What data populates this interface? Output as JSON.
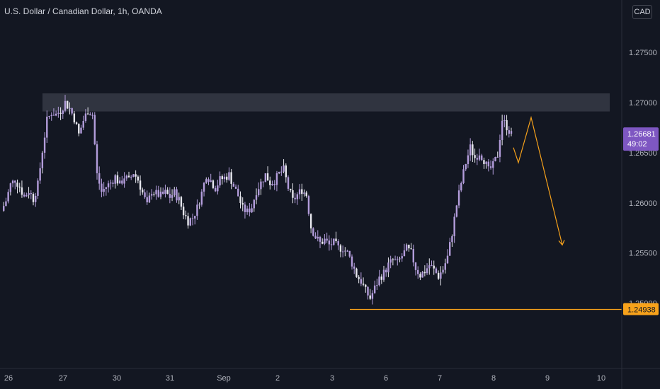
{
  "header": {
    "title": "U.S. Dollar / Canadian Dollar, 1h, OANDA"
  },
  "toolbar": {
    "currency_label": "CAD"
  },
  "chart_data": {
    "type": "candlestick",
    "colors": {
      "background": "#131722",
      "candle": "#b39ddb",
      "candle_light": "#e8e8ef",
      "resistance_zone": "#363a45",
      "support_line": "#f7a21b",
      "projection": "#f7a21b",
      "price_tag": "#7e57c2",
      "support_tag": "#f7a21b",
      "axis_text": "#b2b5be"
    },
    "yaxis": {
      "ticks": [
        "1.27500",
        "1.27000",
        "1.26500",
        "1.26000",
        "1.25500",
        "1.25000"
      ],
      "tick_values": [
        1.275,
        1.27,
        1.265,
        1.26,
        1.255,
        1.25
      ],
      "range": [
        1.2435,
        1.2802
      ]
    },
    "xaxis": {
      "ticks": [
        "26",
        "27",
        "30",
        "31",
        "Sep",
        "2",
        "3",
        "6",
        "7",
        "8",
        "9",
        "10"
      ]
    },
    "current_price": {
      "value": "1.26681",
      "countdown": "49:02"
    },
    "support": {
      "value": "1.24938",
      "price": 1.24938
    },
    "resistance_zone": {
      "top": 1.2709,
      "bottom": 1.2691
    },
    "projection_path": [
      1.2655,
      1.264,
      1.2685,
      1.2558
    ],
    "price_path": [
      1.2592,
      1.2602,
      1.2618,
      1.2623,
      1.2616,
      1.2606,
      1.2612,
      1.2604,
      1.2618,
      1.2652,
      1.2682,
      1.269,
      1.2688,
      1.2692,
      1.27,
      1.2694,
      1.2684,
      1.2668,
      1.2682,
      1.2692,
      1.2688,
      1.2628,
      1.2611,
      1.2616,
      1.262,
      1.2626,
      1.2618,
      1.2626,
      1.2622,
      1.263,
      1.2623,
      1.261,
      1.2597,
      1.2612,
      1.2609,
      1.2607,
      1.261,
      1.2606,
      1.261,
      1.2603,
      1.259,
      1.2582,
      1.2585,
      1.2595,
      1.261,
      1.2628,
      1.2622,
      1.2615,
      1.2623,
      1.2625,
      1.2628,
      1.2617,
      1.2607,
      1.2594,
      1.2591,
      1.2596,
      1.2612,
      1.262,
      1.2628,
      1.262,
      1.2622,
      1.2629,
      1.2633,
      1.2615,
      1.2602,
      1.2608,
      1.2613,
      1.2608,
      1.2576,
      1.2566,
      1.256,
      1.2563,
      1.2558,
      1.256,
      1.2555,
      1.2555,
      1.255,
      1.254,
      1.2528,
      1.2522,
      1.2512,
      1.2505,
      1.2515,
      1.2525,
      1.253,
      1.2538,
      1.2543,
      1.254,
      1.2547,
      1.2554,
      1.255,
      1.2535,
      1.2528,
      1.2532,
      1.2538,
      1.2533,
      1.2527,
      1.2534,
      1.2546,
      1.257,
      1.2598,
      1.262,
      1.264,
      1.2655,
      1.2645,
      1.265,
      1.2643,
      1.2632,
      1.2637,
      1.2648,
      1.2683,
      1.2676,
      1.2668
    ]
  }
}
